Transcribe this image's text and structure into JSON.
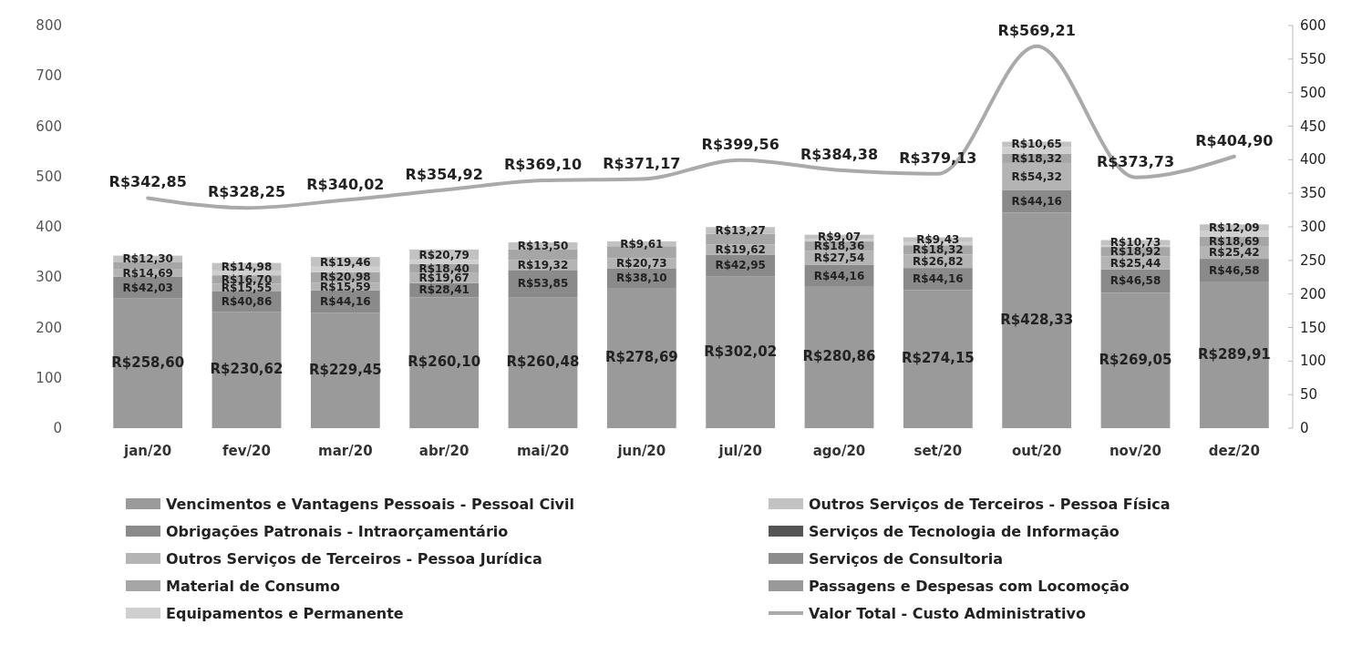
{
  "chart_data": {
    "type": "bar",
    "stacked": true,
    "categories": [
      "jan/20",
      "fev/20",
      "mar/20",
      "abr/20",
      "mai/20",
      "jun/20",
      "jul/20",
      "ago/20",
      "set/20",
      "out/20",
      "nov/20",
      "dez/20"
    ],
    "ylim": [
      0,
      800
    ],
    "yticks": [
      0,
      100,
      200,
      300,
      400,
      500,
      600,
      700,
      800
    ],
    "y2lim": [
      0,
      600
    ],
    "y2ticks": [
      0,
      50,
      100,
      150,
      200,
      250,
      300,
      350,
      400,
      450,
      500,
      550,
      600
    ],
    "legend": "bottom",
    "grid": false,
    "series": [
      {
        "name": "Vencimentos e Vantagens Pessoais - Pessoal Civil",
        "color": "#9a9a9a",
        "values": [
          258.6,
          230.62,
          229.45,
          260.1,
          260.48,
          278.69,
          302.02,
          280.86,
          274.15,
          428.33,
          269.05,
          289.91
        ],
        "value_labels": [
          "R$258,60",
          "R$230,62",
          "R$229,45",
          "R$260,10",
          "R$260,48",
          "R$278,69",
          "R$302,02",
          "R$280,86",
          "R$274,15",
          "R$428,33",
          "R$269,05",
          "R$289,91"
        ]
      },
      {
        "name": "Obrigações Patronais - Intraorçamentário",
        "color": "#8a8a8a",
        "values": [
          42.03,
          40.86,
          44.16,
          28.41,
          53.85,
          38.1,
          42.95,
          44.16,
          44.16,
          44.16,
          46.58,
          46.58
        ],
        "value_labels": [
          "R$42,03",
          "R$40,86",
          "R$44,16",
          "R$28,41",
          "R$53,85",
          "R$38,10",
          "R$42,95",
          "R$44,16",
          "R$44,16",
          "R$44,16",
          "R$46,58",
          "R$46,58"
        ]
      },
      {
        "name": "Outros Serviços de Terceiros - Pessoa Jurídica",
        "color": "#b4b4b4",
        "values": [
          14.69,
          15.55,
          15.59,
          19.67,
          19.32,
          20.73,
          19.62,
          27.54,
          26.82,
          54.32,
          25.44,
          25.42
        ],
        "value_labels": [
          "R$14,69",
          "R$15,55",
          "R$15,59",
          "R$19,67",
          "R$19,32",
          "R$20,73",
          "R$19,62",
          "R$27,54",
          "R$26,82",
          "R$54,32",
          "R$25,44",
          "R$25,42"
        ]
      },
      {
        "name": "Material de Consumo",
        "color": "#a6a6a6",
        "values": [
          15.2,
          16.7,
          20.98,
          18.4,
          22.0,
          24.0,
          21.7,
          18.36,
          18.32,
          18.32,
          18.92,
          18.69
        ],
        "value_labels": [
          null,
          "R$16,70",
          "R$20,98",
          "R$18,40",
          null,
          null,
          null,
          "R$18,36",
          "R$18,32",
          "R$18,32",
          "R$18,92",
          "R$18,69"
        ]
      },
      {
        "name": "Equipamentos e Permanente",
        "color": "#cfcfcf",
        "values": [
          null,
          9.5,
          10.4,
          7.6,
          null,
          null,
          null,
          4.4,
          6.3,
          13.4,
          3.0,
          12.2
        ]
      },
      {
        "name": "Outros Serviços de Terceiros - Pessoa Física",
        "color": "#c2c2c2",
        "values": [
          12.3,
          14.98,
          19.46,
          20.79,
          13.5,
          9.61,
          13.27,
          9.07,
          9.43,
          10.65,
          10.73,
          12.09
        ],
        "value_labels": [
          "R$12,30",
          "R$14,98",
          "R$19,46",
          "R$20,79",
          "R$13,50",
          "R$9,61",
          "R$13,27",
          "R$9,07",
          "R$9,43",
          "R$10,65",
          "R$10,73",
          "R$12,09"
        ]
      },
      {
        "name": "Serviços de Tecnologia de Informação",
        "color": "#555555",
        "values": [
          null,
          null,
          null,
          null,
          null,
          null,
          null,
          null,
          null,
          null,
          null,
          null
        ]
      },
      {
        "name": "Serviços de Consultoria",
        "color": "#8c8c8c",
        "values": [
          null,
          null,
          null,
          null,
          null,
          null,
          null,
          null,
          null,
          null,
          null,
          null
        ]
      },
      {
        "name": "Passagens e Despesas com Locomoção",
        "color": "#999999",
        "values": [
          null,
          null,
          null,
          null,
          null,
          null,
          null,
          null,
          null,
          null,
          null,
          null
        ]
      },
      {
        "name": "Valor Total - Custo Administrativo",
        "type": "line",
        "axis": "y2",
        "color": "#aaaaaa",
        "values": [
          342.85,
          328.25,
          340.02,
          354.92,
          369.1,
          371.17,
          399.56,
          384.38,
          379.13,
          569.21,
          373.73,
          404.9
        ],
        "value_labels": [
          "R$342,85",
          "R$328,25",
          "R$340,02",
          "R$354,92",
          "R$369,10",
          "R$371,17",
          "R$399,56",
          "R$384,38",
          "R$379,13",
          "R$569,21",
          "R$373,73",
          "R$404,90"
        ]
      }
    ]
  }
}
